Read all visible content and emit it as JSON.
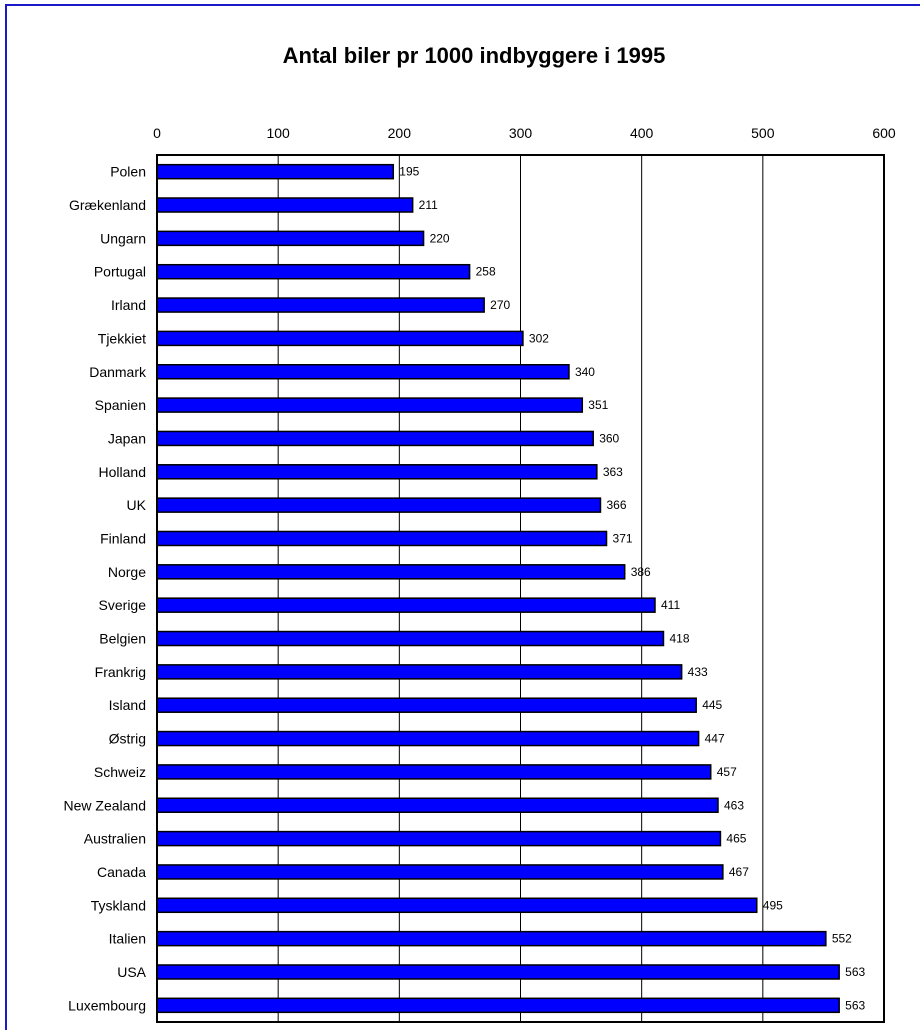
{
  "chart_data": {
    "type": "bar",
    "orientation": "horizontal",
    "title": "Antal biler pr 1000 indbyggere i 1995",
    "xlabel": "",
    "ylabel": "",
    "xlim": [
      0,
      600
    ],
    "ticks": [
      0,
      100,
      200,
      300,
      400,
      500,
      600
    ],
    "x_axis_position": "top",
    "grid": true,
    "bar_color": "#0000ff",
    "categories": [
      "Polen",
      "Grækenland",
      "Ungarn",
      "Portugal",
      "Irland",
      "Tjekkiet",
      "Danmark",
      "Spanien",
      "Japan",
      "Holland",
      "UK",
      "Finland",
      "Norge",
      "Sverige",
      "Belgien",
      "Frankrig",
      "Island",
      "Østrig",
      "Schweiz",
      "New Zealand",
      "Australien",
      "Canada",
      "Tyskland",
      "Italien",
      "USA",
      "Luxembourg"
    ],
    "values": [
      195,
      211,
      220,
      258,
      270,
      302,
      340,
      351,
      360,
      363,
      366,
      371,
      386,
      411,
      418,
      433,
      445,
      447,
      457,
      463,
      465,
      467,
      495,
      552,
      563,
      563
    ],
    "data_labels": [
      "195",
      "211",
      "220",
      "258",
      "270",
      "302",
      "340",
      "351",
      "360",
      "363",
      "366",
      "371",
      "386",
      "411",
      "418",
      "433",
      "445",
      "447",
      "457",
      "463",
      "465",
      "467",
      "495",
      "552",
      "563",
      "563"
    ]
  }
}
